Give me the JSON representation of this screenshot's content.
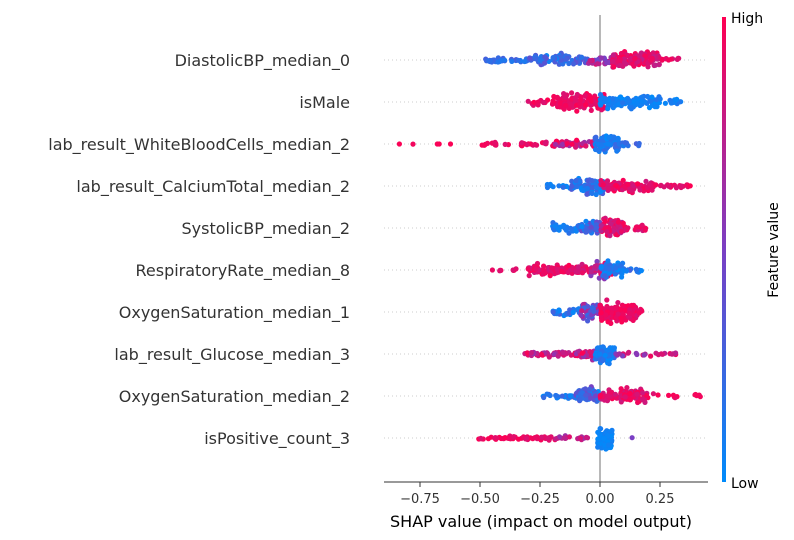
{
  "chart_data": {
    "type": "scatter",
    "subtype": "shap-beeswarm",
    "xlabel": "SHAP value (impact on model output)",
    "xlim": [
      -0.9,
      0.45
    ],
    "xticks": [
      -0.75,
      -0.5,
      -0.25,
      0.0,
      0.25
    ],
    "xtick_labels": [
      "−0.75",
      "−0.50",
      "−0.25",
      "0.00",
      "0.25"
    ],
    "zero_line": 0.0,
    "grid": false,
    "colorbar": {
      "label": "Feature value",
      "high": "High",
      "low": "Low",
      "position": "right"
    },
    "colors": {
      "low": "#008bfb",
      "high": "#ff0052",
      "zero_line": "#999999",
      "row_guides": "#cccccc"
    },
    "features": [
      {
        "name": "DiastolicBP_median_0",
        "groups": [
          {
            "x": [
              -0.48,
              -0.3
            ],
            "n": 32,
            "c": [
              0.1,
              0.3
            ],
            "s": 0.5
          },
          {
            "x": [
              -0.3,
              -0.05
            ],
            "n": 70,
            "c": [
              0.0,
              0.4
            ],
            "s": 1.0
          },
          {
            "x": [
              -0.05,
              0.1
            ],
            "n": 40,
            "c": [
              0.4,
              0.9
            ],
            "s": 0.9
          },
          {
            "x": [
              0.05,
              0.25
            ],
            "n": 120,
            "c": [
              0.75,
              1.0
            ],
            "s": 1.3
          },
          {
            "x": [
              0.25,
              0.33
            ],
            "n": 10,
            "c": [
              0.8,
              1.0
            ],
            "s": 0.3
          }
        ]
      },
      {
        "name": "isMale",
        "groups": [
          {
            "x": [
              -0.3,
              -0.15
            ],
            "n": 18,
            "c": [
              0.85,
              1.0
            ],
            "s": 0.5
          },
          {
            "x": [
              -0.2,
              0.02
            ],
            "n": 150,
            "c": [
              0.85,
              1.0
            ],
            "s": 1.3
          },
          {
            "x": [
              0.0,
              0.25
            ],
            "n": 110,
            "c": [
              0.0,
              0.15
            ],
            "s": 1.0
          },
          {
            "x": [
              0.25,
              0.35
            ],
            "n": 12,
            "c": [
              0.0,
              0.2
            ],
            "s": 0.4
          }
        ]
      },
      {
        "name": "lab_result_WhiteBloodCells_median_2",
        "groups": [
          {
            "x": [
              -0.85,
              -0.6
            ],
            "n": 5,
            "c": [
              0.95,
              1.0
            ],
            "s": 0.05
          },
          {
            "x": [
              -0.5,
              -0.2
            ],
            "n": 30,
            "c": [
              0.85,
              1.0
            ],
            "s": 0.3
          },
          {
            "x": [
              -0.2,
              -0.02
            ],
            "n": 45,
            "c": [
              0.6,
              1.0
            ],
            "s": 0.6
          },
          {
            "x": [
              -0.02,
              0.08
            ],
            "n": 85,
            "c": [
              0.0,
              0.25
            ],
            "s": 1.3
          },
          {
            "x": [
              0.08,
              0.17
            ],
            "n": 10,
            "c": [
              0.0,
              0.3
            ],
            "s": 0.4
          }
        ]
      },
      {
        "name": "lab_result_CalciumTotal_median_2",
        "groups": [
          {
            "x": [
              -0.22,
              -0.12
            ],
            "n": 12,
            "c": [
              0.0,
              0.2
            ],
            "s": 0.4
          },
          {
            "x": [
              -0.12,
              0.02
            ],
            "n": 90,
            "c": [
              0.0,
              0.35
            ],
            "s": 1.2
          },
          {
            "x": [
              0.0,
              0.22
            ],
            "n": 110,
            "c": [
              0.8,
              1.0
            ],
            "s": 0.9
          },
          {
            "x": [
              0.22,
              0.38
            ],
            "n": 20,
            "c": [
              0.85,
              1.0
            ],
            "s": 0.4
          }
        ]
      },
      {
        "name": "SystolicBP_median_2",
        "groups": [
          {
            "x": [
              -0.2,
              -0.08
            ],
            "n": 30,
            "c": [
              0.0,
              0.2
            ],
            "s": 0.7
          },
          {
            "x": [
              -0.08,
              0.0
            ],
            "n": 45,
            "c": [
              0.0,
              0.45
            ],
            "s": 1.0
          },
          {
            "x": [
              0.0,
              0.1
            ],
            "n": 75,
            "c": [
              0.7,
              1.0
            ],
            "s": 1.3
          },
          {
            "x": [
              0.1,
              0.2
            ],
            "n": 18,
            "c": [
              0.8,
              1.0
            ],
            "s": 0.4
          }
        ]
      },
      {
        "name": "RespiratoryRate_median_8",
        "groups": [
          {
            "x": [
              -0.47,
              -0.3
            ],
            "n": 8,
            "c": [
              0.85,
              1.0
            ],
            "s": 0.15
          },
          {
            "x": [
              -0.3,
              -0.05
            ],
            "n": 90,
            "c": [
              0.8,
              1.0
            ],
            "s": 0.8
          },
          {
            "x": [
              -0.05,
              0.05
            ],
            "n": 50,
            "c": [
              0.5,
              1.0
            ],
            "s": 1.2
          },
          {
            "x": [
              0.0,
              0.1
            ],
            "n": 70,
            "c": [
              0.0,
              0.25
            ],
            "s": 1.1
          },
          {
            "x": [
              0.1,
              0.2
            ],
            "n": 10,
            "c": [
              0.0,
              0.3
            ],
            "s": 0.4
          }
        ]
      },
      {
        "name": "OxygenSaturation_median_1",
        "groups": [
          {
            "x": [
              -0.2,
              -0.08
            ],
            "n": 25,
            "c": [
              0.0,
              0.3
            ],
            "s": 0.6
          },
          {
            "x": [
              -0.08,
              0.0
            ],
            "n": 55,
            "c": [
              0.2,
              0.8
            ],
            "s": 1.2
          },
          {
            "x": [
              0.0,
              0.15
            ],
            "n": 140,
            "c": [
              0.85,
              1.0
            ],
            "s": 1.4
          },
          {
            "x": [
              0.15,
              0.18
            ],
            "n": 8,
            "c": [
              0.85,
              1.0
            ],
            "s": 0.4
          }
        ]
      },
      {
        "name": "lab_result_Glucose_median_3",
        "groups": [
          {
            "x": [
              -0.32,
              -0.1
            ],
            "n": 45,
            "c": [
              0.6,
              1.0
            ],
            "s": 0.4
          },
          {
            "x": [
              -0.1,
              -0.02
            ],
            "n": 30,
            "c": [
              0.5,
              1.0
            ],
            "s": 0.7
          },
          {
            "x": [
              -0.02,
              0.06
            ],
            "n": 100,
            "c": [
              0.0,
              0.25
            ],
            "s": 1.3
          },
          {
            "x": [
              0.06,
              0.32
            ],
            "n": 25,
            "c": [
              0.5,
              1.0
            ],
            "s": 0.3
          }
        ]
      },
      {
        "name": "OxygenSaturation_median_2",
        "groups": [
          {
            "x": [
              -0.25,
              -0.1
            ],
            "n": 20,
            "c": [
              0.0,
              0.3
            ],
            "s": 0.4
          },
          {
            "x": [
              -0.1,
              0.0
            ],
            "n": 60,
            "c": [
              0.0,
              0.5
            ],
            "s": 1.1
          },
          {
            "x": [
              0.0,
              0.2
            ],
            "n": 120,
            "c": [
              0.8,
              1.0
            ],
            "s": 1.0
          },
          {
            "x": [
              0.2,
              0.42
            ],
            "n": 12,
            "c": [
              0.85,
              1.0
            ],
            "s": 0.3
          }
        ]
      },
      {
        "name": "isPositive_count_3",
        "groups": [
          {
            "x": [
              -0.55,
              -0.2
            ],
            "n": 55,
            "c": [
              0.85,
              1.0
            ],
            "s": 0.35
          },
          {
            "x": [
              -0.2,
              -0.05
            ],
            "n": 20,
            "c": [
              0.6,
              1.0
            ],
            "s": 0.35
          },
          {
            "x": [
              -0.01,
              0.05
            ],
            "n": 90,
            "c": [
              0.0,
              0.1
            ],
            "s": 1.4
          },
          {
            "x": [
              0.13,
              0.15
            ],
            "n": 1,
            "c": [
              0.5,
              0.5
            ],
            "s": 0.1
          }
        ]
      }
    ]
  }
}
